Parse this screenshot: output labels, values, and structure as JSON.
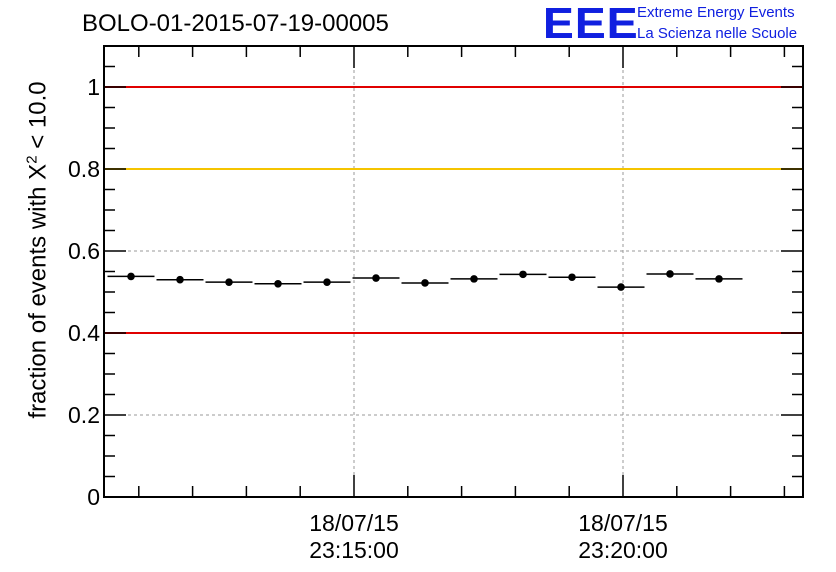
{
  "title": "BOLO-01-2015-07-19-00005",
  "logo": {
    "mark": "EEE",
    "line1": "Extreme Energy Events",
    "line2": "La Scienza nelle Scuole"
  },
  "colors": {
    "red": "#e00000",
    "yellow": "#f5c400",
    "logo_blue": "#1020e0"
  },
  "chart_data": {
    "type": "scatter",
    "ylabel_prefix": "fraction of events with ",
    "ylabel_chi": "X",
    "ylabel_power": "2",
    "ylabel_suffix": " < 10.0",
    "ylim": [
      0,
      1.1
    ],
    "yticks": [
      0,
      0.2,
      0.4,
      0.6,
      0.8,
      1
    ],
    "ytick_labels": [
      "0",
      "0.2",
      "0.4",
      "0.6",
      "0.8",
      "1"
    ],
    "xticks": [
      {
        "date": "18/07/15",
        "time": "23:15:00"
      },
      {
        "date": "18/07/15",
        "time": "23:20:00"
      }
    ],
    "reference_lines": [
      {
        "y": 1.0,
        "color": "red"
      },
      {
        "y": 0.8,
        "color": "yellow"
      },
      {
        "y": 0.4,
        "color": "red"
      }
    ],
    "grid": true,
    "points": [
      0.538,
      0.53,
      0.524,
      0.52,
      0.524,
      0.534,
      0.522,
      0.532,
      0.543,
      0.536,
      0.512,
      0.544,
      0.532
    ]
  }
}
